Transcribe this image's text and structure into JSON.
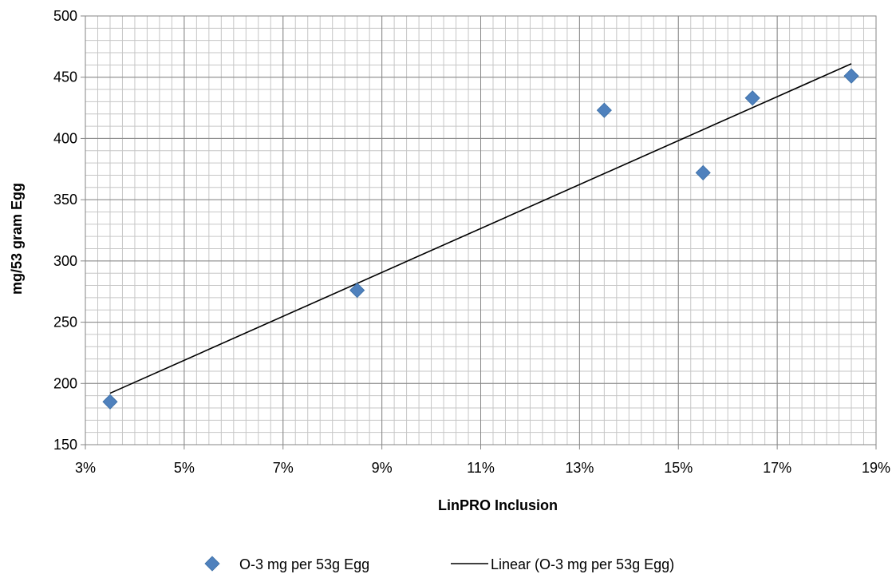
{
  "chart_data": {
    "type": "scatter",
    "xlabel": "LinPRO Inclusion",
    "ylabel": "mg/53 gram  Egg",
    "xlim": [
      3,
      19
    ],
    "ylim": [
      150,
      500
    ],
    "x_ticks": [
      "3%",
      "5%",
      "7%",
      "9%",
      "11%",
      "13%",
      "15%",
      "17%",
      "19%"
    ],
    "y_ticks": [
      "150",
      "200",
      "250",
      "300",
      "350",
      "400",
      "450",
      "500"
    ],
    "grid": true,
    "legend_position": "bottom",
    "series": [
      {
        "name": "O-3 mg per 53g Egg",
        "marker": "diamond",
        "color": "#4F81BD",
        "points": [
          {
            "x": 3.5,
            "y": 185
          },
          {
            "x": 8.5,
            "y": 276
          },
          {
            "x": 13.5,
            "y": 423
          },
          {
            "x": 15.5,
            "y": 372
          },
          {
            "x": 16.5,
            "y": 433
          },
          {
            "x": 18.5,
            "y": 451
          }
        ]
      }
    ],
    "trendline": {
      "name": "Linear (O-3 mg per 53g Egg)",
      "type": "linear",
      "color": "#000000",
      "start": {
        "x": 3.5,
        "y": 192
      },
      "end": {
        "x": 18.5,
        "y": 461
      }
    }
  }
}
